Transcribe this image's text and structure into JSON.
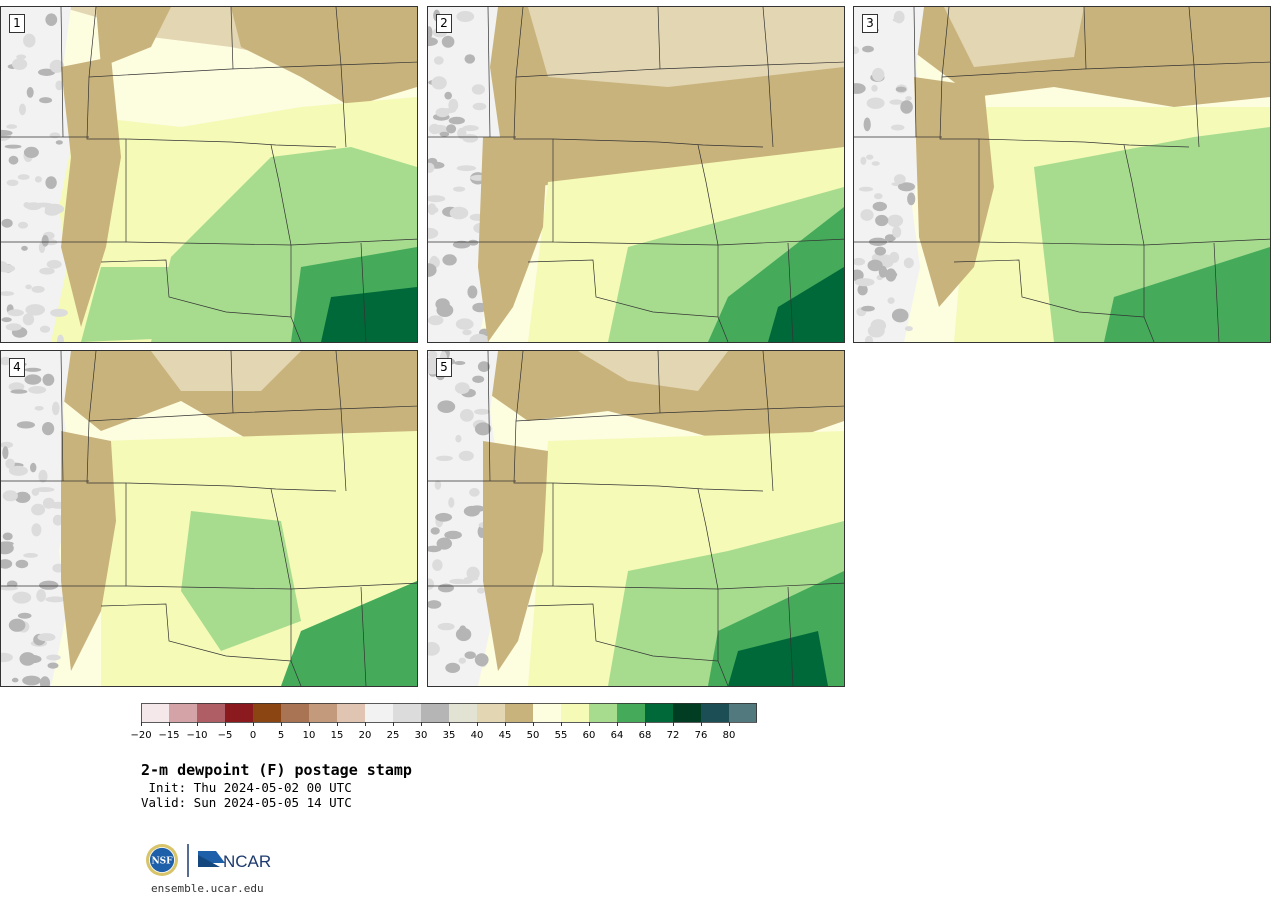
{
  "panels": [
    {
      "label": "1",
      "profile": "p1"
    },
    {
      "label": "2",
      "profile": "p2"
    },
    {
      "label": "3",
      "profile": "p3"
    },
    {
      "label": "4",
      "profile": "p4"
    },
    {
      "label": "5",
      "profile": "p5"
    }
  ],
  "colorbar": {
    "colors": [
      "#f5e8ea",
      "#d4a3a8",
      "#b05e66",
      "#8b1a1f",
      "#8b4513",
      "#a87453",
      "#c49a7c",
      "#e0c6b2",
      "#f2f2f2",
      "#dcdcdc",
      "#b5b5b5",
      "#e3e3d3",
      "#e3d6b3",
      "#c9b37c",
      "#fdfde0",
      "#f5fab7",
      "#a7dc8f",
      "#45ab5b",
      "#00693a",
      "#003d22",
      "#1c4f55",
      "#52797d"
    ],
    "tick_labels": [
      "−20",
      "−15",
      "−10",
      "−5",
      "0",
      "5",
      "10",
      "15",
      "20",
      "25",
      "30",
      "35",
      "40",
      "45",
      "50",
      "55",
      "60",
      "64",
      "68",
      "72",
      "76",
      "80"
    ]
  },
  "title": "2-m dewpoint (F) postage stamp",
  "init_line": " Init: Thu 2024-05-02 00 UTC",
  "valid_line": "Valid: Sun 2024-05-05 14 UTC",
  "logo": {
    "nsf": "NSF",
    "ncar": "NCAR"
  },
  "url": "ensemble.ucar.edu"
}
